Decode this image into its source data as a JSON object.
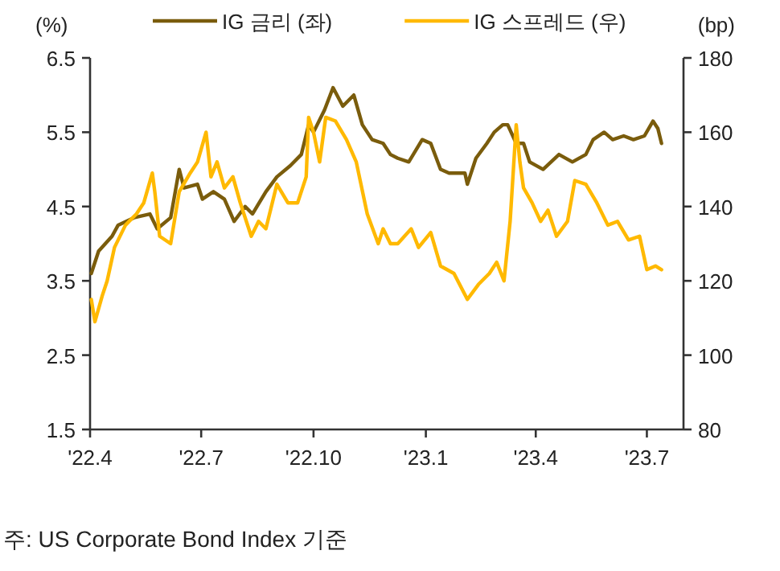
{
  "chart_data": {
    "type": "line",
    "ylabel": "(%)",
    "y2label": "(bp)",
    "xlim": [
      "2022-04-01",
      "2023-07-31"
    ],
    "xticks": [
      {
        "value": "2022-04-01",
        "label": "'22.4"
      },
      {
        "value": "2022-07-01",
        "label": "'22.7"
      },
      {
        "value": "2022-10-01",
        "label": "'22.10"
      },
      {
        "value": "2023-01-01",
        "label": "'23.1"
      },
      {
        "value": "2023-04-01",
        "label": "'23.4"
      },
      {
        "value": "2023-07-01",
        "label": "'23.7"
      }
    ],
    "ylim": [
      1.5,
      6.5
    ],
    "yticks": [
      1.5,
      2.5,
      3.5,
      4.5,
      5.5,
      6.5
    ],
    "y2lim": [
      80,
      180
    ],
    "y2ticks": [
      80,
      100,
      120,
      140,
      160,
      180
    ],
    "legend": "top",
    "series": [
      {
        "name": "IG 금리 (좌)",
        "color": "#7a5c0c",
        "x": [
          "2022-04-02",
          "2022-04-08",
          "2022-04-19",
          "2022-04-24",
          "2022-05-07",
          "2022-05-20",
          "2022-05-26",
          "2022-06-06",
          "2022-06-13",
          "2022-06-17",
          "2022-06-28",
          "2022-07-02",
          "2022-07-11",
          "2022-07-20",
          "2022-07-28",
          "2022-08-06",
          "2022-08-12",
          "2022-08-23",
          "2022-09-01",
          "2022-09-12",
          "2022-09-21",
          "2022-09-27",
          "2022-10-01",
          "2022-10-10",
          "2022-10-17",
          "2022-10-25",
          "2022-11-03",
          "2022-11-10",
          "2022-11-18",
          "2022-11-27",
          "2022-12-03",
          "2022-12-09",
          "2022-12-18",
          "2022-12-29",
          "2023-01-05",
          "2023-01-13",
          "2023-01-20",
          "2023-02-02",
          "2023-02-04",
          "2023-02-11",
          "2023-02-20",
          "2023-02-26",
          "2023-03-05",
          "2023-03-09",
          "2023-03-16",
          "2023-03-22",
          "2023-03-27",
          "2023-04-07",
          "2023-04-20",
          "2023-05-01",
          "2023-05-12",
          "2023-05-18",
          "2023-05-27",
          "2023-06-03",
          "2023-06-12",
          "2023-06-20",
          "2023-06-29",
          "2023-07-06",
          "2023-07-10",
          "2023-07-13"
        ],
        "values": [
          3.6,
          3.9,
          4.1,
          4.25,
          4.35,
          4.4,
          4.2,
          4.35,
          5.0,
          4.75,
          4.8,
          4.6,
          4.7,
          4.6,
          4.3,
          4.5,
          4.4,
          4.7,
          4.9,
          5.05,
          5.2,
          5.6,
          5.5,
          5.8,
          6.1,
          5.85,
          6.0,
          5.6,
          5.4,
          5.35,
          5.2,
          5.15,
          5.1,
          5.4,
          5.35,
          5.0,
          4.95,
          4.95,
          4.8,
          5.15,
          5.35,
          5.5,
          5.6,
          5.6,
          5.35,
          5.35,
          5.1,
          5.0,
          5.2,
          5.1,
          5.2,
          5.4,
          5.5,
          5.4,
          5.45,
          5.4,
          5.45,
          5.65,
          5.55,
          5.35
        ]
      },
      {
        "name": "IG 스프레드 (우)",
        "color": "#ffb900",
        "axis": "y2",
        "x": [
          "2022-04-02",
          "2022-04-05",
          "2022-04-11",
          "2022-04-15",
          "2022-04-21",
          "2022-04-30",
          "2022-05-09",
          "2022-05-15",
          "2022-05-22",
          "2022-05-24",
          "2022-05-28",
          "2022-06-06",
          "2022-06-13",
          "2022-06-22",
          "2022-06-28",
          "2022-07-05",
          "2022-07-09",
          "2022-07-14",
          "2022-07-20",
          "2022-07-27",
          "2022-08-02",
          "2022-08-11",
          "2022-08-17",
          "2022-08-23",
          "2022-09-01",
          "2022-09-10",
          "2022-09-18",
          "2022-09-25",
          "2022-09-27",
          "2022-10-01",
          "2022-10-06",
          "2022-10-11",
          "2022-10-19",
          "2022-10-28",
          "2022-11-05",
          "2022-11-14",
          "2022-11-23",
          "2022-11-27",
          "2022-12-03",
          "2022-12-09",
          "2022-12-20",
          "2022-12-26",
          "2023-01-05",
          "2023-01-13",
          "2023-01-24",
          "2023-02-04",
          "2023-02-13",
          "2023-02-22",
          "2023-02-28",
          "2023-03-06",
          "2023-03-11",
          "2023-03-16",
          "2023-03-19",
          "2023-03-22",
          "2023-03-29",
          "2023-04-05",
          "2023-04-11",
          "2023-04-18",
          "2023-04-27",
          "2023-05-03",
          "2023-05-12",
          "2023-05-21",
          "2023-05-30",
          "2023-06-07",
          "2023-06-16",
          "2023-06-25",
          "2023-07-01",
          "2023-07-08",
          "2023-07-13"
        ],
        "values": [
          115,
          109,
          116,
          120,
          129,
          135,
          138,
          141,
          149,
          144,
          132,
          130,
          144,
          149,
          152,
          160,
          148,
          152,
          145,
          148,
          141,
          132,
          136,
          134,
          146,
          141,
          141,
          148,
          164,
          160,
          152,
          164,
          163,
          158,
          152,
          138,
          130,
          134,
          130,
          130,
          134,
          129,
          133,
          124,
          122,
          115,
          119,
          122,
          125,
          120,
          136,
          162,
          152,
          145,
          141,
          136,
          139,
          132,
          136,
          147,
          146,
          141,
          135,
          136,
          131,
          132,
          123,
          124,
          123
        ]
      }
    ],
    "annotations": [
      "주: US Corporate Bond Index 기준"
    ]
  }
}
